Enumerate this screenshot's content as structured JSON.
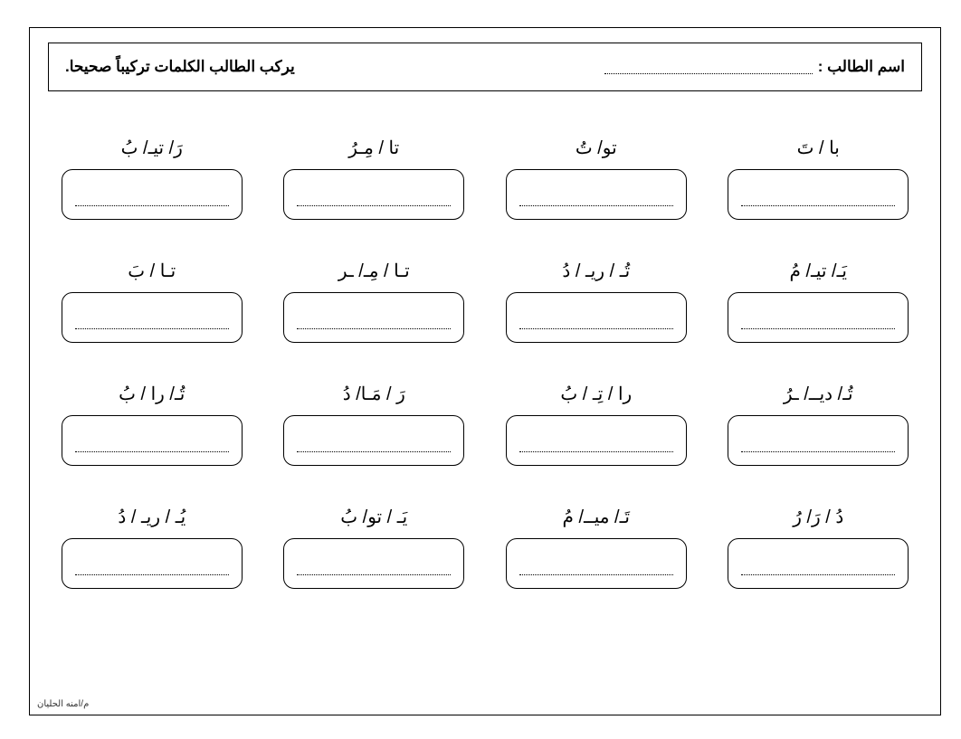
{
  "header": {
    "name_label": "اسم الطالب :",
    "instruction": "يركب الطالب الكلمات تركيباً صحيحا."
  },
  "rows": [
    {
      "cells": [
        {
          "prompt": "با / تَ"
        },
        {
          "prompt": "تو/ تُ"
        },
        {
          "prompt": "تا / مِـرُ"
        },
        {
          "prompt": "رَ/ تيـ/ بُ"
        }
      ]
    },
    {
      "cells": [
        {
          "prompt": "يَـ/ تيـ/ مُ"
        },
        {
          "prompt": "تُـ / ريـ / دُ"
        },
        {
          "prompt": "تـا / مِـ/ ـر"
        },
        {
          "prompt": "تـا / بَ"
        }
      ]
    },
    {
      "cells": [
        {
          "prompt": "تُـ/ ديــ/ ـرُ"
        },
        {
          "prompt": "را / تِـ / بُ"
        },
        {
          "prompt": "رَ / مَـا/ دُ"
        },
        {
          "prompt": "تُـ/ را / بُ"
        }
      ]
    },
    {
      "cells": [
        {
          "prompt": "دُ / رَ/ رُ"
        },
        {
          "prompt": "تَـ/ ميــ/ مُ"
        },
        {
          "prompt": "يَـ / تو/ بُ"
        },
        {
          "prompt": "يُـ / ريـ / دُ"
        }
      ]
    }
  ],
  "footer": {
    "credit": "م/امنه الحليان"
  },
  "style": {
    "page_bg": "#ffffff",
    "border_color": "#000000",
    "text_color": "#000000",
    "prompt_fontsize": 20,
    "header_fontsize": 17,
    "answer_box_radius": 12,
    "answer_box_border_width": 1.5,
    "row_count": 4,
    "col_count": 4
  }
}
